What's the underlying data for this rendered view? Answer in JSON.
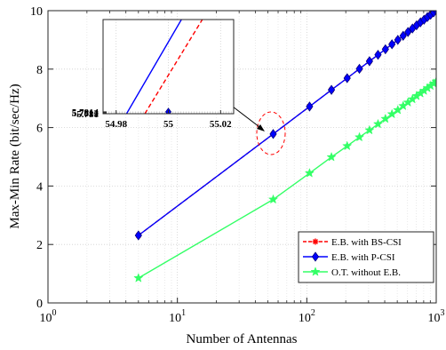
{
  "chart_data": {
    "type": "line",
    "xlabel": "Number of Antennas",
    "ylabel": "Max-Min Rate (bit/sec/Hz)",
    "xscale": "log",
    "xlim": [
      1,
      1000
    ],
    "ylim": [
      0,
      10
    ],
    "grid": true,
    "legend_position": "bottom-right",
    "x_tick_labels": [
      {
        "base": "10",
        "exp": "0"
      },
      {
        "base": "10",
        "exp": "1"
      },
      {
        "base": "10",
        "exp": "2"
      },
      {
        "base": "10",
        "exp": "3"
      }
    ],
    "y_tick_labels": [
      "0",
      "2",
      "4",
      "6",
      "8",
      "10"
    ],
    "x": [
      5,
      55,
      105,
      155,
      205,
      255,
      305,
      355,
      405,
      455,
      505,
      555,
      605,
      655,
      705,
      755,
      805,
      855,
      905,
      955,
      1000
    ],
    "series": [
      {
        "name": "E.B. with BS-CSI",
        "color": "#ff0000",
        "line_style": "dashed",
        "marker": "asterisk",
        "values": [
          2.31,
          5.78,
          6.72,
          7.29,
          7.69,
          8.01,
          8.27,
          8.49,
          8.68,
          8.85,
          9.0,
          9.14,
          9.27,
          9.39,
          9.5,
          9.6,
          9.69,
          9.78,
          9.86,
          9.94,
          10.01
        ]
      },
      {
        "name": "E.B. with P-CSI",
        "color": "#0000ff",
        "line_style": "solid",
        "marker": "diamond",
        "values": [
          2.31,
          5.78,
          6.72,
          7.29,
          7.69,
          8.01,
          8.27,
          8.49,
          8.68,
          8.85,
          9.0,
          9.14,
          9.27,
          9.39,
          9.5,
          9.6,
          9.69,
          9.78,
          9.86,
          9.94,
          10.01
        ]
      },
      {
        "name": "O.T. without E.B.",
        "color": "#33ff66",
        "line_style": "solid",
        "marker": "star",
        "values": [
          0.85,
          3.54,
          4.44,
          4.99,
          5.37,
          5.67,
          5.91,
          6.12,
          6.3,
          6.46,
          6.6,
          6.74,
          6.86,
          6.97,
          7.08,
          7.17,
          7.26,
          7.35,
          7.43,
          7.51,
          7.58
        ]
      }
    ],
    "inset": {
      "xlim": [
        54.975,
        55.025
      ],
      "ylim": [
        5.781,
        5.8015
      ],
      "x_tick_labels": [
        "54.98",
        "55",
        "55.02"
      ],
      "y_tick_labels": [
        "5.781",
        "5.7812",
        "5.7814"
      ],
      "series": [
        {
          "name": "E.B. with BS-CSI",
          "x": [
            54.991,
            55.013
          ],
          "y": [
            5.781,
            5.8015
          ],
          "marker_point": [
            55,
            5.78122
          ]
        },
        {
          "name": "E.B. with P-CSI",
          "x": [
            54.984,
            55.005
          ],
          "y": [
            5.781,
            5.8015
          ],
          "marker_point": [
            55,
            5.78141
          ]
        }
      ]
    }
  }
}
